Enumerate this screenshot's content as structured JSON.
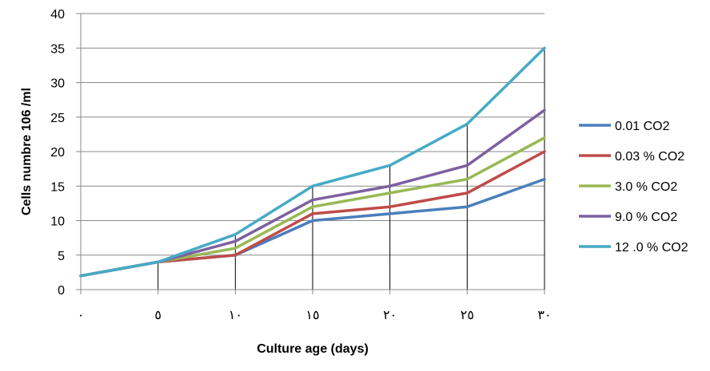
{
  "chart_data": {
    "type": "line",
    "xlabel": "Culture age (days)",
    "ylabel": "Cells numbre 106 /ml",
    "x": [
      0,
      5,
      10,
      15,
      20,
      25,
      30
    ],
    "x_tick_labels": [
      "٠",
      "٥",
      "١٠",
      "١٥",
      "٢٠",
      "٢٥",
      "٣٠"
    ],
    "ylim": [
      0,
      40
    ],
    "y_ticks": [
      0,
      5,
      10,
      15,
      20,
      25,
      30,
      35,
      40
    ],
    "legend_position": "right",
    "series": [
      {
        "name": "0.01 CO2",
        "color": "#4a7ebb",
        "values": [
          2,
          4,
          5,
          10,
          11,
          12,
          16
        ]
      },
      {
        "name": "0.03 % CO2",
        "color": "#be4b48",
        "values": [
          2,
          4,
          5,
          11,
          12,
          14,
          20
        ]
      },
      {
        "name": "3.0 % CO2",
        "color": "#98b954",
        "values": [
          2,
          4,
          6,
          12,
          14,
          16,
          22
        ]
      },
      {
        "name": "9.0 % CO2",
        "color": "#7d60a0",
        "values": [
          2,
          4,
          7,
          13,
          15,
          18,
          26
        ]
      },
      {
        "name": "12 .0 % CO2",
        "color": "#46aac5",
        "values": [
          2,
          4,
          8,
          15,
          18,
          24,
          35
        ]
      }
    ]
  }
}
